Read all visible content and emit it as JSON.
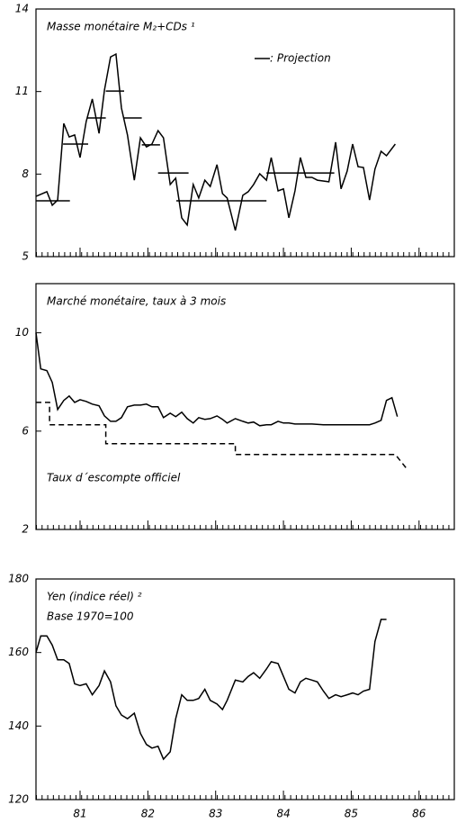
{
  "chart_data": [
    {
      "type": "line",
      "title": "Masse monétaire M₂+CDs ¹",
      "xlim": [
        1980.35,
        1986.52
      ],
      "xticks": [
        1981,
        1982,
        1983,
        1984,
        1985,
        1986
      ],
      "ylim": [
        5,
        14
      ],
      "yticks": [
        5,
        8,
        11,
        14
      ],
      "series": [
        {
          "color": "#000000",
          "style": "solid",
          "x": [
            1980.35,
            1980.51,
            1980.59,
            1980.67,
            1980.76,
            1980.84,
            1980.92,
            1981.0,
            1981.09,
            1981.18,
            1981.28,
            1981.36,
            1981.45,
            1981.53,
            1981.61,
            1981.7,
            1981.8,
            1981.89,
            1981.98,
            1982.06,
            1982.15,
            1982.23,
            1982.33,
            1982.41,
            1982.5,
            1982.58,
            1982.67,
            1982.75,
            1982.84,
            1982.92,
            1983.02,
            1983.1,
            1983.17,
            1983.29,
            1983.4,
            1983.48,
            1983.56,
            1983.65,
            1983.75,
            1983.82,
            1983.92,
            1984.0,
            1984.08,
            1984.17,
            1984.25,
            1984.33,
            1984.42,
            1984.5,
            1984.67,
            1984.77,
            1984.85,
            1984.94,
            1985.02,
            1985.1,
            1985.18,
            1985.27,
            1985.35,
            1985.44,
            1985.52,
            1985.65
          ],
          "values": [
            7.19,
            7.36,
            6.87,
            7.06,
            9.84,
            9.35,
            9.42,
            8.6,
            9.91,
            10.73,
            9.48,
            11.05,
            12.26,
            12.36,
            10.4,
            9.42,
            7.78,
            9.32,
            8.99,
            9.09,
            9.58,
            9.32,
            7.62,
            7.85,
            6.41,
            6.15,
            7.62,
            7.13,
            7.78,
            7.55,
            8.34,
            7.29,
            7.13,
            5.95,
            7.23,
            7.36,
            7.62,
            8.01,
            7.78,
            8.6,
            7.39,
            7.46,
            6.41,
            7.39,
            8.6,
            7.88,
            7.88,
            7.78,
            7.72,
            9.16,
            7.46,
            8.11,
            9.09,
            8.27,
            8.24,
            7.06,
            8.18,
            8.83,
            8.67,
            9.09
          ]
        },
        {
          "name": ": Projection",
          "color": "#000000",
          "style": "solid",
          "x": [
            1980.35,
            1980.85,
            1980.75,
            1980.75,
            1981.12,
            1981.11,
            1981.11,
            1981.38,
            1981.38,
            1981.38,
            1981.65,
            1981.65,
            1981.65,
            1981.91,
            1981.91,
            1981.91,
            1982.18,
            1982.15,
            1982.15,
            1982.6,
            1982.42,
            1982.42,
            1983.75,
            1983.75,
            1983.75,
            1984.75
          ],
          "values": [
            7.03,
            7.03,
            null,
            9.09,
            9.09,
            null,
            10.04,
            10.04,
            null,
            11.02,
            11.02,
            null,
            10.04,
            10.04,
            null,
            9.06,
            9.06,
            null,
            8.04,
            8.04,
            null,
            7.03,
            7.03,
            null,
            8.04,
            8.04
          ]
        }
      ]
    },
    {
      "type": "line",
      "title": "Marché monétaire, taux à 3 mois",
      "xlim": [
        1980.35,
        1986.52
      ],
      "xticks": [
        1981,
        1982,
        1983,
        1984,
        1985,
        1986
      ],
      "ylim": [
        2,
        12
      ],
      "yticks": [
        2,
        6,
        10
      ],
      "series": [
        {
          "color": "#000000",
          "style": "solid",
          "x": [
            1980.35,
            1980.42,
            1980.51,
            1980.59,
            1980.67,
            1980.76,
            1980.84,
            1980.92,
            1981.0,
            1981.09,
            1981.18,
            1981.28,
            1981.36,
            1981.45,
            1981.53,
            1981.61,
            1981.7,
            1981.8,
            1981.89,
            1981.98,
            1982.06,
            1982.15,
            1982.23,
            1982.33,
            1982.41,
            1982.5,
            1982.58,
            1982.67,
            1982.75,
            1982.84,
            1982.92,
            1983.02,
            1983.1,
            1983.17,
            1983.29,
            1983.4,
            1983.48,
            1983.56,
            1983.65,
            1983.75,
            1983.82,
            1983.92,
            1984.0,
            1984.08,
            1984.17,
            1984.25,
            1984.42,
            1984.59,
            1984.77,
            1984.94,
            1985.1,
            1985.27,
            1985.35,
            1985.44,
            1985.52,
            1985.6,
            1985.68
          ],
          "values": [
            10.0,
            8.53,
            8.46,
            7.98,
            6.88,
            7.25,
            7.43,
            7.17,
            7.28,
            7.21,
            7.1,
            7.03,
            6.62,
            6.4,
            6.4,
            6.55,
            6.99,
            7.06,
            7.06,
            7.1,
            6.99,
            6.99,
            6.55,
            6.73,
            6.59,
            6.77,
            6.51,
            6.33,
            6.55,
            6.48,
            6.51,
            6.62,
            6.48,
            6.33,
            6.51,
            6.4,
            6.33,
            6.37,
            6.22,
            6.26,
            6.26,
            6.4,
            6.33,
            6.33,
            6.29,
            6.29,
            6.29,
            6.26,
            6.26,
            6.26,
            6.26,
            6.26,
            6.33,
            6.44,
            7.25,
            7.36,
            6.59
          ]
        },
        {
          "name": "Taux d´escompte officiel",
          "color": "#000000",
          "style": "dashed",
          "x": [
            1980.35,
            1980.55,
            1980.55,
            1981.38,
            1981.38,
            1983.29,
            1983.29,
            1985.65,
            1985.81
          ],
          "values": [
            7.17,
            7.17,
            6.26,
            6.26,
            5.49,
            5.49,
            5.05,
            5.05,
            4.5
          ]
        }
      ]
    },
    {
      "type": "line",
      "title": "Yen (indice réel) ²",
      "subtitle": "Base 1970=100",
      "xlim": [
        1980.35,
        1986.52
      ],
      "xticks": [
        {
          "value": 1981,
          "label": "81"
        },
        {
          "value": 1982,
          "label": "82"
        },
        {
          "value": 1983,
          "label": "83"
        },
        {
          "value": 1984,
          "label": "84"
        },
        {
          "value": 1985,
          "label": "85"
        },
        {
          "value": 1986,
          "label": "86"
        }
      ],
      "ylim": [
        120,
        180
      ],
      "yticks": [
        120,
        140,
        160,
        180
      ],
      "series": [
        {
          "color": "#000000",
          "style": "solid",
          "x": [
            1980.35,
            1980.42,
            1980.51,
            1980.59,
            1980.67,
            1980.76,
            1980.84,
            1980.92,
            1981.0,
            1981.09,
            1981.18,
            1981.28,
            1981.36,
            1981.45,
            1981.53,
            1981.61,
            1981.7,
            1981.8,
            1981.89,
            1981.98,
            1982.06,
            1982.15,
            1982.23,
            1982.33,
            1982.41,
            1982.5,
            1982.58,
            1982.67,
            1982.75,
            1982.84,
            1982.92,
            1983.02,
            1983.1,
            1983.17,
            1983.29,
            1983.4,
            1983.48,
            1983.56,
            1983.65,
            1983.75,
            1983.82,
            1983.92,
            1984.0,
            1984.08,
            1984.17,
            1984.25,
            1984.33,
            1984.42,
            1984.5,
            1984.59,
            1984.67,
            1984.77,
            1984.85,
            1984.94,
            1985.02,
            1985.1,
            1985.18,
            1985.27,
            1985.35,
            1985.44,
            1985.52
          ],
          "values": [
            160,
            164.5,
            164.5,
            162,
            158,
            158,
            157,
            151.5,
            151,
            151.5,
            148.5,
            151,
            155,
            152,
            145.5,
            143,
            142,
            143.5,
            138,
            135,
            134,
            134.5,
            131,
            133,
            142,
            148.5,
            147,
            147,
            147.5,
            150,
            147,
            146,
            144.5,
            147,
            152.5,
            152,
            153.5,
            154.5,
            153,
            155.5,
            157.5,
            157,
            153.5,
            150,
            149,
            152,
            153,
            152.5,
            152,
            149.5,
            147.5,
            148.5,
            148,
            148.5,
            149,
            148.5,
            149.5,
            150,
            163,
            169,
            169
          ]
        }
      ]
    }
  ]
}
